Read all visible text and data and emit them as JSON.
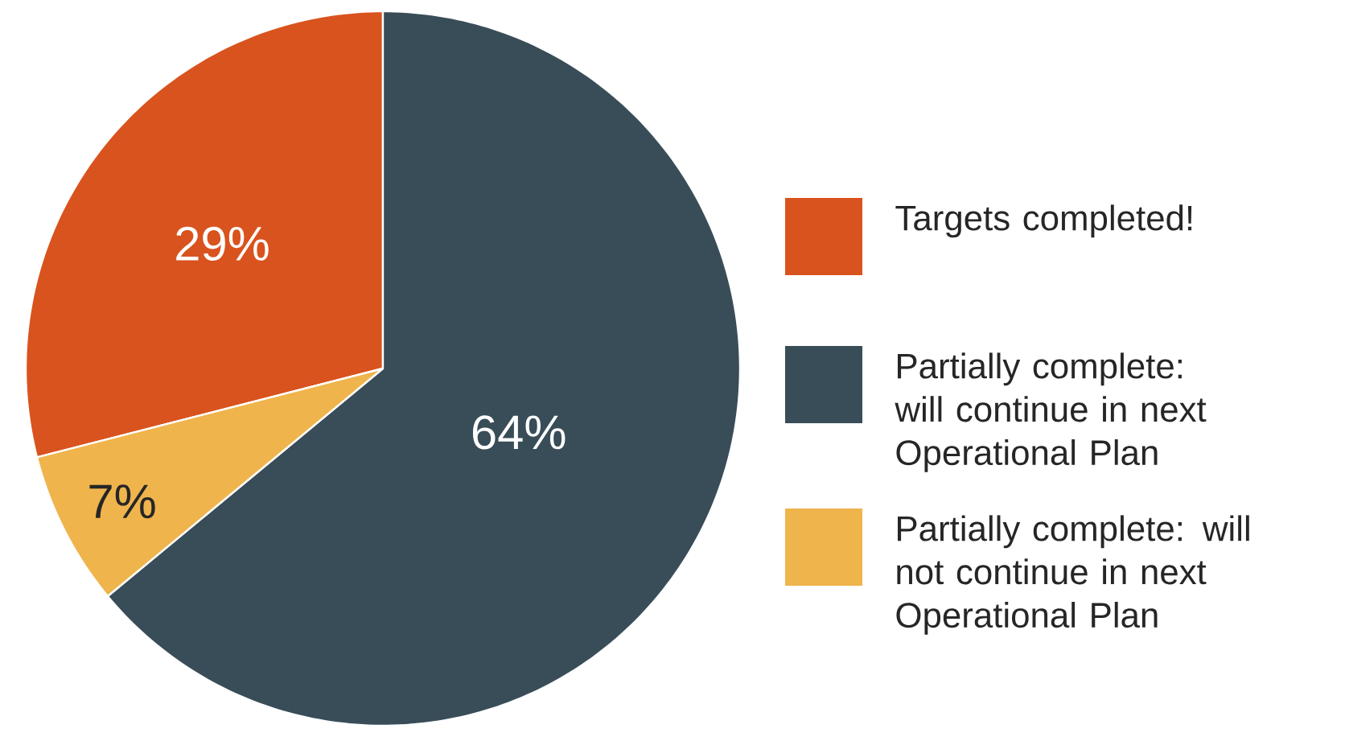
{
  "chart_data": {
    "type": "pie",
    "categories": [
      "Targets completed!",
      "Partially complete: will continue in next Operational Plan",
      "Partially complete: will not continue in next Operational Plan"
    ],
    "values": [
      29,
      64,
      7
    ],
    "value_labels": [
      "29%",
      "64%",
      "7%"
    ],
    "colors": [
      "#d9531e",
      "#394d58",
      "#efb44c"
    ],
    "legend": "right"
  }
}
